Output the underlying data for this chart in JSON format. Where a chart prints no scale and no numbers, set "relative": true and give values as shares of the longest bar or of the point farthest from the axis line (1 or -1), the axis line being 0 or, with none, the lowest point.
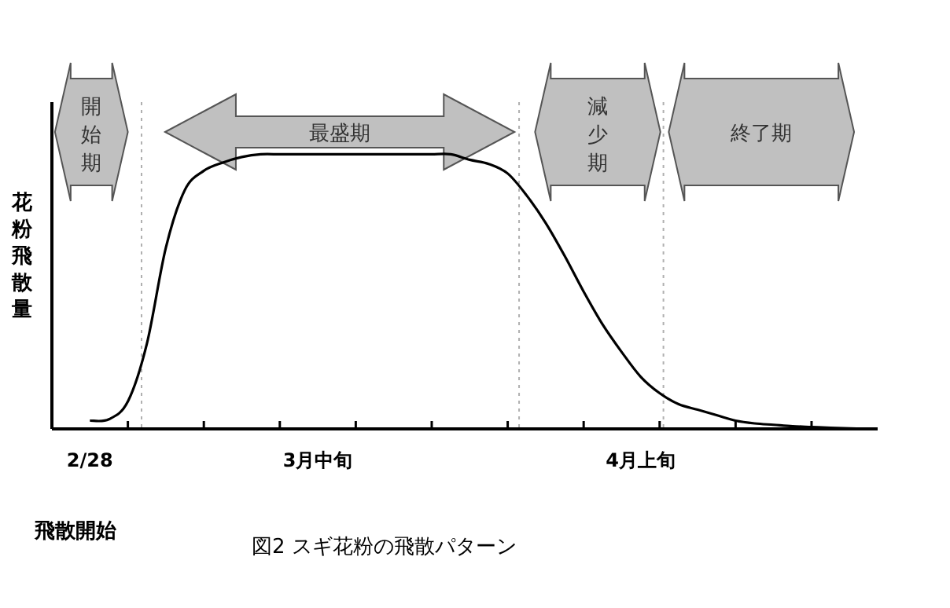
{
  "chart_data": {
    "type": "line",
    "relative": true,
    "ylabel": "花粉飛散量",
    "categories": [
      null,
      null,
      "2/28",
      null,
      null,
      null,
      null,
      null,
      null,
      null,
      null,
      null,
      null,
      null,
      "3月中旬",
      null,
      null,
      null,
      null,
      null,
      null,
      null,
      null,
      null,
      null,
      null,
      null,
      null,
      null,
      null,
      null,
      "4月上旬",
      null,
      null,
      null,
      null,
      null,
      null,
      null,
      null,
      null,
      null,
      null,
      null
    ],
    "series": [
      {
        "color": "#000000",
        "values": [
          null,
          null,
          0.03,
          0.035,
          0.1,
          0.31,
          0.66,
          0.87,
          0.94,
          0.97,
          0.99,
          1.0,
          1.0,
          1.0,
          1.0,
          1.0,
          1.0,
          1.0,
          1.0,
          1.0,
          1.0,
          1.0,
          0.98,
          0.965,
          0.93,
          0.85,
          0.75,
          0.63,
          0.5,
          0.38,
          0.28,
          0.19,
          0.13,
          0.09,
          0.07,
          0.05,
          0.03,
          0.02,
          0.015,
          0.01,
          0.007,
          0.004,
          0.002,
          0.0
        ]
      }
    ],
    "annotations": [
      "飛散開始",
      "図2  スギ花粉の飛散パターン",
      "開始期",
      "最盛期",
      "減少期",
      "終了期"
    ],
    "grid": false,
    "marker": "none",
    "line_style": "solid"
  }
}
